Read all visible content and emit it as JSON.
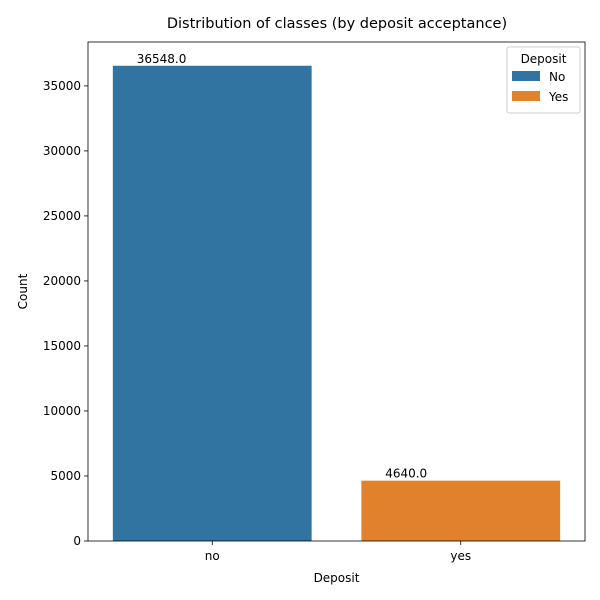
{
  "chart_data": {
    "type": "bar",
    "title": "Distribution of classes (by deposit acceptance)",
    "xlabel": "Deposit",
    "ylabel": "Count",
    "categories": [
      "no",
      "yes"
    ],
    "values": [
      36548.0,
      4640.0
    ],
    "data_labels": [
      "36548.0",
      "4640.0"
    ],
    "colors": [
      "#3274a1",
      "#e1812c"
    ],
    "ylim": [
      0,
      38375
    ],
    "yticks": [
      0,
      5000,
      10000,
      15000,
      20000,
      25000,
      30000,
      35000
    ],
    "grid": false,
    "legend": {
      "title": "Deposit",
      "placement": "top-right",
      "entries": [
        {
          "label": "No",
          "color": "#3274a1"
        },
        {
          "label": "Yes",
          "color": "#e1812c"
        }
      ]
    }
  }
}
